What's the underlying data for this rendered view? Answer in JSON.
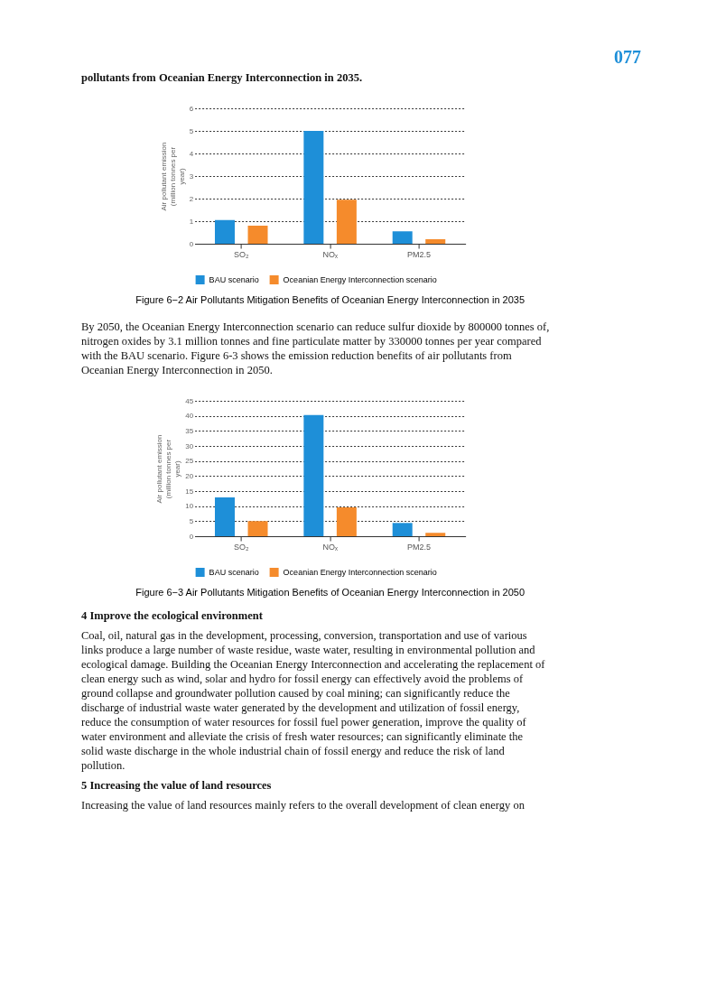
{
  "chart_data": [
    {
      "type": "bar",
      "title": "Figure 6−2   Air Pollutants Mitigation Benefits of Oceanian Energy Interconnection in 2035",
      "ylabel": "Air pollutant emission (million tonnes per year)",
      "categories": [
        "SO₂",
        "NOₓ",
        "PM2.5"
      ],
      "series": [
        {
          "name": "BAU scenario",
          "color": "#1e8fd8",
          "values": [
            1.05,
            5.0,
            0.55
          ]
        },
        {
          "name": "Oceanian Energy Interconnection scenario",
          "color": "#f58b2c",
          "values": [
            0.8,
            1.95,
            0.2
          ]
        }
      ],
      "ylim": [
        0,
        6
      ],
      "yticks": [
        0,
        1,
        2,
        3,
        4,
        5,
        6
      ],
      "grid": "y",
      "legend": "bottom",
      "annotations": [
        "077",
        "pollutants from Oceanian Energy Interconnection in 2035."
      ]
    },
    {
      "type": "bar",
      "title": "Figure 6−3   Air Pollutants Mitigation Benefits of Oceanian Energy Interconnection in 2050",
      "ylabel": "Air pollutant emission (million tonnes per year)",
      "categories": [
        "SO₂",
        "NOₓ",
        "PM2.5"
      ],
      "series": [
        {
          "name": "BAU scenario",
          "color": "#1e8fd8",
          "values": [
            12.9,
            40.3,
            4.4
          ]
        },
        {
          "name": "Oceanian Energy Interconnection scenario",
          "color": "#f58b2c",
          "values": [
            5.0,
            9.6,
            1.1
          ]
        }
      ],
      "ylim": [
        0,
        45
      ],
      "yticks": [
        0,
        5,
        10,
        15,
        20,
        25,
        30,
        35,
        40,
        45
      ],
      "grid": "y",
      "legend": "bottom",
      "annotations": [
        "By 2050, the Oceanian Energy Interconnection scenario can reduce sulfur dioxide by 800000 tonnes of, nitrogen oxides by 3.1 million tonnes and fine particulate matter by 330000 tonnes per year compared with the BAU scenario. Figure 6-3 shows the emission reduction benefits of air pollutants from Oceanian Energy Interconnection in 2050.",
        "4  Improve the ecological environment",
        "Coal, oil, natural gas in the development, processing, conversion, transportation and use of various links produce a large number of waste residue, waste water, resulting in environmental pollution and ecological damage. Building the Oceanian Energy Interconnection and accelerating the replacement of clean energy such as wind, solar and hydro for fossil energy can effectively avoid the problems of ground collapse and groundwater pollution caused by coal mining; can significantly reduce the discharge of industrial waste water generated by the development and utilization of fossil energy, reduce the consumption of water resources for fossil fuel power generation, improve the quality of water environment and alleviate the crisis of fresh water resources; can significantly eliminate the solid waste discharge in the whole industrial chain of fossil energy and reduce the risk of land pollution.",
        "5  Increasing the value of land resources",
        "Increasing the value of land resources mainly refers to the overall development of clean energy on"
      ]
    }
  ]
}
